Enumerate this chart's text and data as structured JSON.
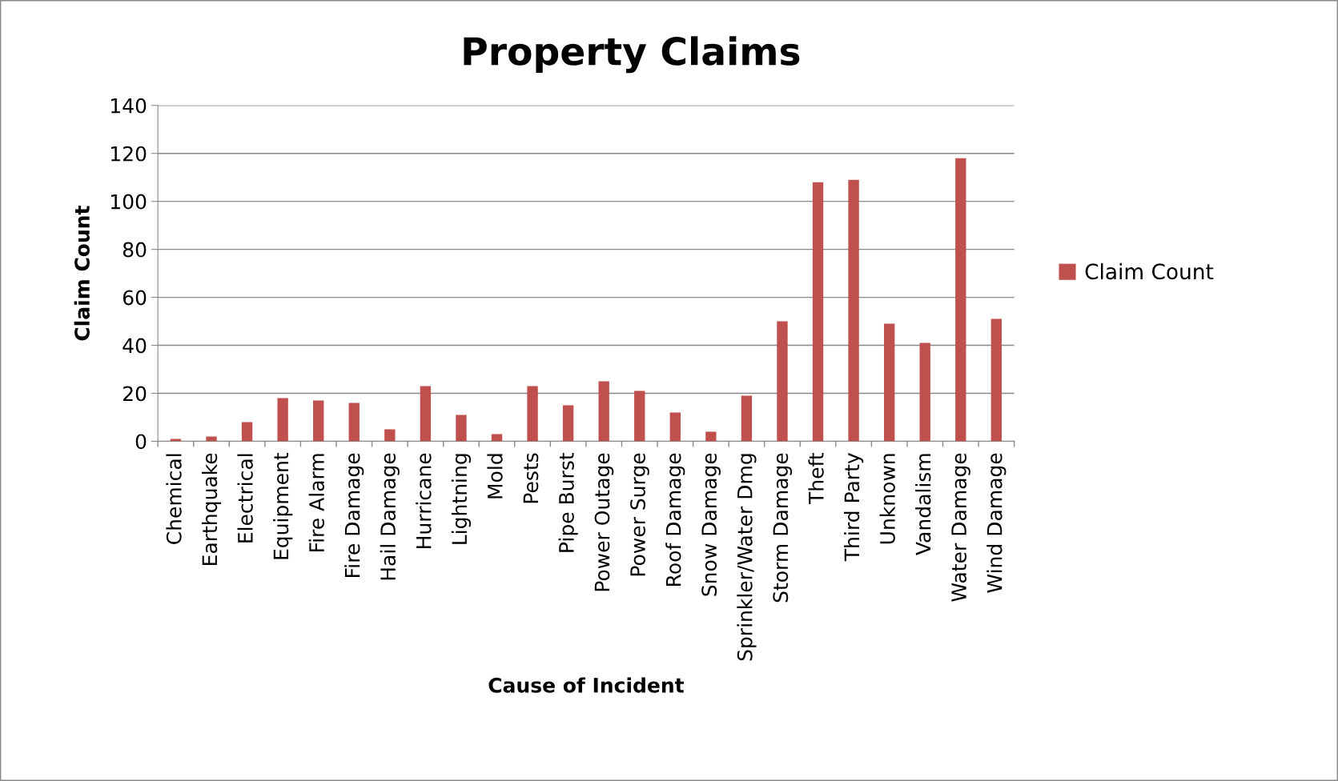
{
  "chart_data": {
    "type": "bar",
    "title": "Property Claims",
    "xlabel": "Cause of Incident",
    "ylabel": "Claim Count",
    "categories": [
      "Chemical",
      "Earthquake",
      "Electrical",
      "Equipment",
      "Fire Alarm",
      "Fire Damage",
      "Hail Damage",
      "Hurricane",
      "Lightning",
      "Mold",
      "Pests",
      "Pipe Burst",
      "Power Outage",
      "Power Surge",
      "Roof Damage",
      "Snow Damage",
      "Sprinkler/Water Dmg",
      "Storm Damage",
      "Theft",
      "Third Party",
      "Unknown",
      "Vandalism",
      "Water Damage",
      "Wind Damage"
    ],
    "series": [
      {
        "name": "Claim Count",
        "color": "#c0504d",
        "values": [
          1,
          2,
          8,
          18,
          17,
          16,
          5,
          23,
          11,
          3,
          23,
          15,
          25,
          21,
          12,
          4,
          19,
          50,
          108,
          109,
          49,
          41,
          118,
          51
        ]
      }
    ],
    "ylim": [
      0,
      140
    ],
    "yticks": [
      0,
      20,
      40,
      60,
      80,
      100,
      120,
      140
    ],
    "grid": "y",
    "legend": "right"
  }
}
